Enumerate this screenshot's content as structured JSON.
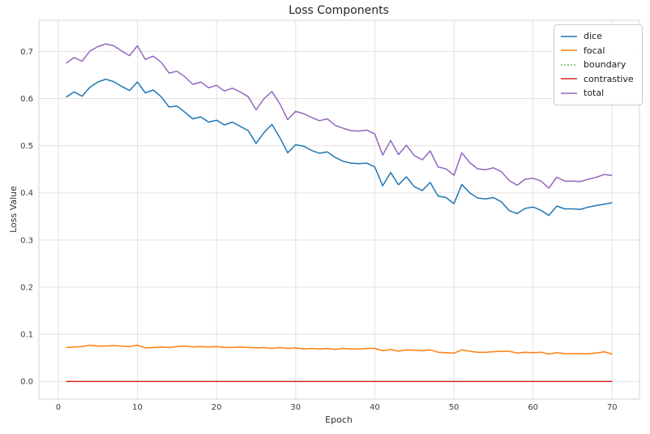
{
  "chart_data": {
    "type": "line",
    "title": "Loss Components",
    "xlabel": "Epoch",
    "ylabel": "Loss Value",
    "grid": true,
    "legend_position": "upper right",
    "xlim": [
      -2.45,
      73.45
    ],
    "ylim": [
      -0.0375,
      0.766
    ],
    "xticks": [
      0,
      10,
      20,
      30,
      40,
      50,
      60,
      70
    ],
    "xtick_labels": [
      "0",
      "10",
      "20",
      "30",
      "40",
      "50",
      "60",
      "70"
    ],
    "yticks": [
      0.0,
      0.1,
      0.2,
      0.3,
      0.4,
      0.5,
      0.6,
      0.7
    ],
    "ytick_labels": [
      "0.0",
      "0.1",
      "0.2",
      "0.3",
      "0.4",
      "0.5",
      "0.6",
      "0.7"
    ],
    "x": [
      1,
      2,
      3,
      4,
      5,
      6,
      7,
      8,
      9,
      10,
      11,
      12,
      13,
      14,
      15,
      16,
      17,
      18,
      19,
      20,
      21,
      22,
      23,
      24,
      25,
      26,
      27,
      28,
      29,
      30,
      31,
      32,
      33,
      34,
      35,
      36,
      37,
      38,
      39,
      40,
      41,
      42,
      43,
      44,
      45,
      46,
      47,
      48,
      49,
      50,
      51,
      52,
      53,
      54,
      55,
      56,
      57,
      58,
      59,
      60,
      61,
      62,
      63,
      64,
      65,
      66,
      67,
      68,
      69,
      70
    ],
    "series": [
      {
        "name": "dice",
        "color": "#1f77b4",
        "linestyle": "solid",
        "values": [
          0.603,
          0.614,
          0.605,
          0.624,
          0.635,
          0.641,
          0.636,
          0.626,
          0.617,
          0.635,
          0.612,
          0.618,
          0.604,
          0.582,
          0.584,
          0.571,
          0.557,
          0.561,
          0.55,
          0.554,
          0.544,
          0.55,
          0.541,
          0.532,
          0.505,
          0.528,
          0.545,
          0.517,
          0.485,
          0.502,
          0.499,
          0.49,
          0.484,
          0.487,
          0.475,
          0.467,
          0.463,
          0.462,
          0.463,
          0.455,
          0.415,
          0.443,
          0.417,
          0.434,
          0.413,
          0.405,
          0.422,
          0.393,
          0.39,
          0.377,
          0.418,
          0.4,
          0.389,
          0.387,
          0.39,
          0.381,
          0.362,
          0.356,
          0.367,
          0.37,
          0.363,
          0.352,
          0.372,
          0.366,
          0.366,
          0.365,
          0.37,
          0.373,
          0.376,
          0.379
        ]
      },
      {
        "name": "focal",
        "color": "#ff7f0e",
        "linestyle": "solid",
        "values": [
          0.072,
          0.073,
          0.074,
          0.077,
          0.075,
          0.075,
          0.076,
          0.075,
          0.074,
          0.077,
          0.071,
          0.072,
          0.073,
          0.072,
          0.074,
          0.075,
          0.073,
          0.074,
          0.073,
          0.074,
          0.072,
          0.072,
          0.073,
          0.072,
          0.071,
          0.072,
          0.07,
          0.072,
          0.07,
          0.071,
          0.069,
          0.07,
          0.069,
          0.07,
          0.068,
          0.07,
          0.069,
          0.069,
          0.07,
          0.07,
          0.065,
          0.068,
          0.064,
          0.067,
          0.066,
          0.065,
          0.067,
          0.062,
          0.061,
          0.06,
          0.067,
          0.064,
          0.062,
          0.062,
          0.063,
          0.064,
          0.064,
          0.06,
          0.062,
          0.061,
          0.062,
          0.058,
          0.061,
          0.059,
          0.059,
          0.059,
          0.059,
          0.06,
          0.063,
          0.058
        ]
      },
      {
        "name": "boundary",
        "color": "#2ca02c",
        "linestyle": "dotted",
        "values": [
          0,
          0,
          0,
          0,
          0,
          0,
          0,
          0,
          0,
          0,
          0,
          0,
          0,
          0,
          0,
          0,
          0,
          0,
          0,
          0,
          0,
          0,
          0,
          0,
          0,
          0,
          0,
          0,
          0,
          0,
          0,
          0,
          0,
          0,
          0,
          0,
          0,
          0,
          0,
          0,
          0,
          0,
          0,
          0,
          0,
          0,
          0,
          0,
          0,
          0,
          0,
          0,
          0,
          0,
          0,
          0,
          0,
          0,
          0,
          0,
          0,
          0,
          0,
          0,
          0,
          0,
          0,
          0,
          0,
          0
        ]
      },
      {
        "name": "contrastive",
        "color": "#d62728",
        "linestyle": "solid",
        "values": [
          0,
          0,
          0,
          0,
          0,
          0,
          0,
          0,
          0,
          0,
          0,
          0,
          0,
          0,
          0,
          0,
          0,
          0,
          0,
          0,
          0,
          0,
          0,
          0,
          0,
          0,
          0,
          0,
          0,
          0,
          0,
          0,
          0,
          0,
          0,
          0,
          0,
          0,
          0,
          0,
          0,
          0,
          0,
          0,
          0,
          0,
          0,
          0,
          0,
          0,
          0,
          0,
          0,
          0,
          0,
          0,
          0,
          0,
          0,
          0,
          0,
          0,
          0,
          0,
          0,
          0,
          0,
          0,
          0,
          0
        ]
      },
      {
        "name": "total",
        "color": "#9467bd",
        "linestyle": "solid",
        "values": [
          0.675,
          0.687,
          0.679,
          0.701,
          0.71,
          0.716,
          0.712,
          0.701,
          0.691,
          0.712,
          0.683,
          0.69,
          0.677,
          0.654,
          0.658,
          0.646,
          0.63,
          0.635,
          0.623,
          0.628,
          0.616,
          0.622,
          0.614,
          0.604,
          0.576,
          0.6,
          0.615,
          0.589,
          0.555,
          0.573,
          0.568,
          0.56,
          0.553,
          0.557,
          0.543,
          0.537,
          0.532,
          0.531,
          0.533,
          0.525,
          0.48,
          0.511,
          0.481,
          0.501,
          0.479,
          0.47,
          0.489,
          0.455,
          0.451,
          0.437,
          0.485,
          0.464,
          0.451,
          0.449,
          0.453,
          0.445,
          0.426,
          0.416,
          0.429,
          0.431,
          0.425,
          0.41,
          0.433,
          0.425,
          0.425,
          0.424,
          0.429,
          0.433,
          0.439,
          0.437
        ]
      }
    ],
    "colors": {
      "background": "#ffffff",
      "grid": "#e3e3e3",
      "spine": "#d4d4d4",
      "tick_label": "#3d3d3d",
      "text": "#262626",
      "legend_border": "#cccccc"
    }
  }
}
